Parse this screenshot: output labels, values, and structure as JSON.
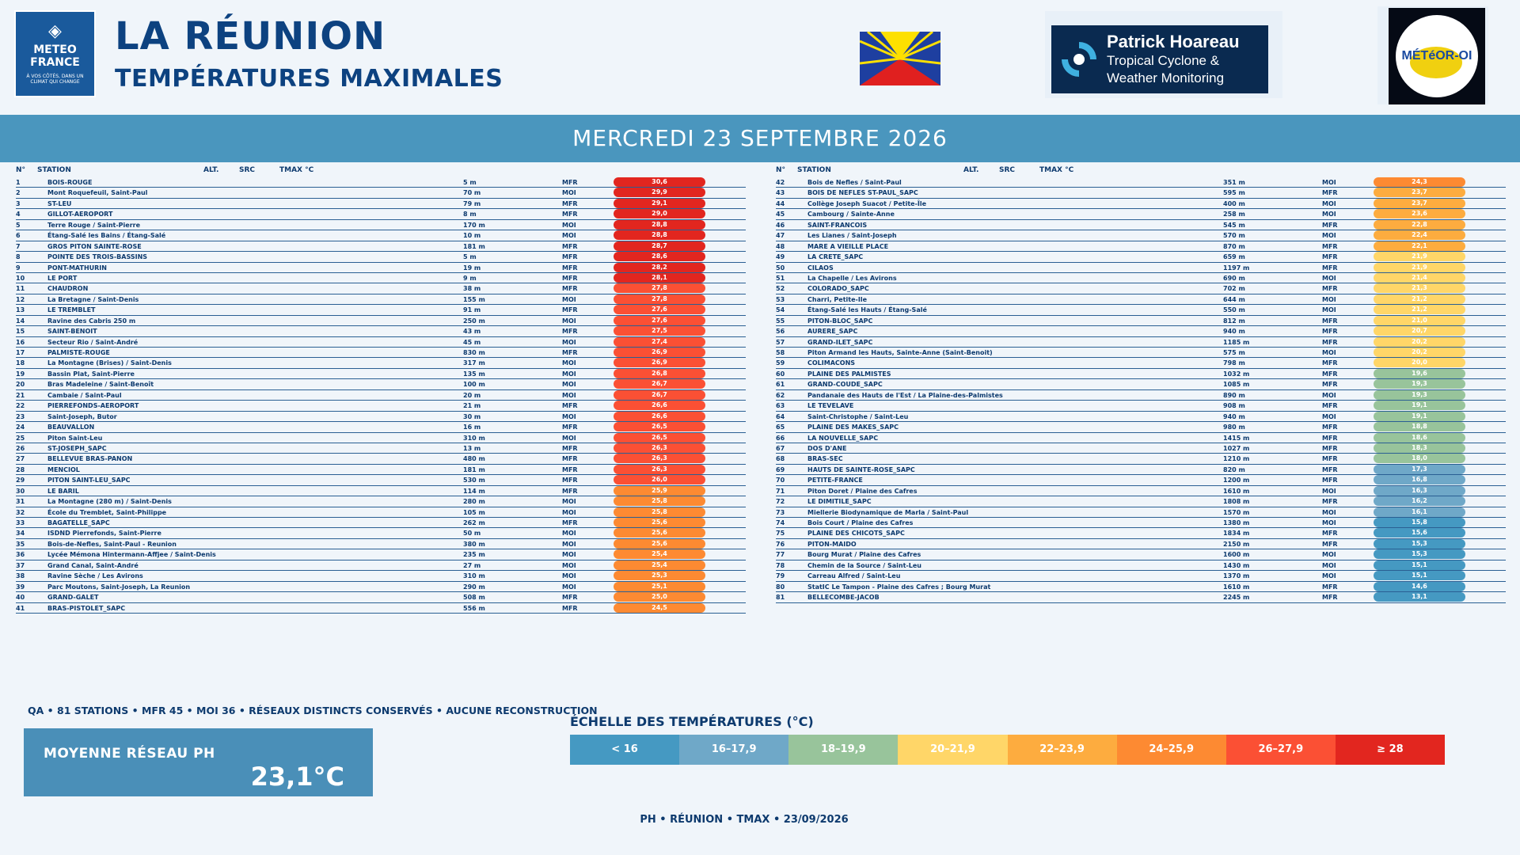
{
  "header": {
    "logo_mf": {
      "line1": "METEO",
      "line2": "FRANCE",
      "tagline": "À VOS CÔTÉS, DANS UN CLIMAT QUI CHANGE"
    },
    "title": "LA RÉUNION",
    "subtitle": "TEMPÉRATURES MAXIMALES",
    "logo_ph": {
      "name": "Patrick Hoareau",
      "line2": "Tropical Cyclone &",
      "line3": "Weather Monitoring"
    },
    "logo_moi": {
      "text": "MÉTéOR-OI"
    }
  },
  "banner": "MERCREDI 23 SEPTEMBRE 2026",
  "table_headers": {
    "n": "N°",
    "station": "STATION",
    "alt": "ALT.",
    "src": "SRC",
    "tmax": "TMAX °C"
  },
  "colors": {
    "lt16": "#4599c2",
    "c16_17": "#6fa8c8",
    "c18_19": "#98c49b",
    "c20_21": "#ffd668",
    "c22_23": "#fdac3f",
    "c24_25": "#fd8a32",
    "c26_27": "#fb5034",
    "ge28": "#e2261f"
  },
  "left_rows": [
    {
      "n": "1",
      "station": "BOIS-ROUGE",
      "alt": "5 m",
      "src": "MFR",
      "tmax": "30,6",
      "color": "#e2261f"
    },
    {
      "n": "2",
      "station": "Mont Roquefeuil, Saint-Paul",
      "alt": "70 m",
      "src": "MOI",
      "tmax": "29,9",
      "color": "#e2261f"
    },
    {
      "n": "3",
      "station": "ST-LEU",
      "alt": "79 m",
      "src": "MFR",
      "tmax": "29,1",
      "color": "#e2261f"
    },
    {
      "n": "4",
      "station": "GILLOT-AEROPORT",
      "alt": "8 m",
      "src": "MFR",
      "tmax": "29,0",
      "color": "#e2261f"
    },
    {
      "n": "5",
      "station": "Terre Rouge / Saint-Pierre",
      "alt": "170 m",
      "src": "MOI",
      "tmax": "28,8",
      "color": "#e2261f"
    },
    {
      "n": "6",
      "station": "Étang-Salé les Bains / Étang-Salé",
      "alt": "10 m",
      "src": "MOI",
      "tmax": "28,8",
      "color": "#e2261f"
    },
    {
      "n": "7",
      "station": "GROS PITON SAINTE-ROSE",
      "alt": "181 m",
      "src": "MFR",
      "tmax": "28,7",
      "color": "#e2261f"
    },
    {
      "n": "8",
      "station": "POINTE DES TROIS-BASSINS",
      "alt": "5 m",
      "src": "MFR",
      "tmax": "28,6",
      "color": "#e2261f"
    },
    {
      "n": "9",
      "station": "PONT-MATHURIN",
      "alt": "19 m",
      "src": "MFR",
      "tmax": "28,2",
      "color": "#e2261f"
    },
    {
      "n": "10",
      "station": "LE PORT",
      "alt": "9 m",
      "src": "MFR",
      "tmax": "28,1",
      "color": "#e2261f"
    },
    {
      "n": "11",
      "station": "CHAUDRON",
      "alt": "38 m",
      "src": "MFR",
      "tmax": "27,8",
      "color": "#fb5034"
    },
    {
      "n": "12",
      "station": "La Bretagne / Saint-Denis",
      "alt": "155 m",
      "src": "MOI",
      "tmax": "27,8",
      "color": "#fb5034"
    },
    {
      "n": "13",
      "station": "LE TREMBLET",
      "alt": "91 m",
      "src": "MFR",
      "tmax": "27,6",
      "color": "#fb5034"
    },
    {
      "n": "14",
      "station": "Ravine des Cabris 250 m",
      "alt": "250 m",
      "src": "MOI",
      "tmax": "27,6",
      "color": "#fb5034"
    },
    {
      "n": "15",
      "station": "SAINT-BENOIT",
      "alt": "43 m",
      "src": "MFR",
      "tmax": "27,5",
      "color": "#fb5034"
    },
    {
      "n": "16",
      "station": "Secteur Rio / Saint-André",
      "alt": "45 m",
      "src": "MOI",
      "tmax": "27,4",
      "color": "#fb5034"
    },
    {
      "n": "17",
      "station": "PALMISTE-ROUGE",
      "alt": "830 m",
      "src": "MFR",
      "tmax": "26,9",
      "color": "#fb5034"
    },
    {
      "n": "18",
      "station": "La Montagne (Brises) / Saint-Denis",
      "alt": "317 m",
      "src": "MOI",
      "tmax": "26,9",
      "color": "#fb5034"
    },
    {
      "n": "19",
      "station": "Bassin Plat, Saint-Pierre",
      "alt": "135 m",
      "src": "MOI",
      "tmax": "26,8",
      "color": "#fb5034"
    },
    {
      "n": "20",
      "station": "Bras Madeleine / Saint-Benoît",
      "alt": "100 m",
      "src": "MOI",
      "tmax": "26,7",
      "color": "#fb5034"
    },
    {
      "n": "21",
      "station": "Cambaie / Saint-Paul",
      "alt": "20 m",
      "src": "MOI",
      "tmax": "26,7",
      "color": "#fb5034"
    },
    {
      "n": "22",
      "station": "PIERREFONDS-AEROPORT",
      "alt": "21 m",
      "src": "MFR",
      "tmax": "26,6",
      "color": "#fb5034"
    },
    {
      "n": "23",
      "station": "Saint-Joseph, Butor",
      "alt": "30 m",
      "src": "MOI",
      "tmax": "26,6",
      "color": "#fb5034"
    },
    {
      "n": "24",
      "station": "BEAUVALLON",
      "alt": "16 m",
      "src": "MFR",
      "tmax": "26,5",
      "color": "#fb5034"
    },
    {
      "n": "25",
      "station": "Piton Saint-Leu",
      "alt": "310 m",
      "src": "MOI",
      "tmax": "26,5",
      "color": "#fb5034"
    },
    {
      "n": "26",
      "station": "ST-JOSEPH_SAPC",
      "alt": "13 m",
      "src": "MFR",
      "tmax": "26,3",
      "color": "#fb5034"
    },
    {
      "n": "27",
      "station": "BELLEVUE BRAS-PANON",
      "alt": "480 m",
      "src": "MFR",
      "tmax": "26,3",
      "color": "#fb5034"
    },
    {
      "n": "28",
      "station": "MENCIOL",
      "alt": "181 m",
      "src": "MFR",
      "tmax": "26,3",
      "color": "#fb5034"
    },
    {
      "n": "29",
      "station": "PITON SAINT-LEU_SAPC",
      "alt": "530 m",
      "src": "MFR",
      "tmax": "26,0",
      "color": "#fb5034"
    },
    {
      "n": "30",
      "station": "LE BARIL",
      "alt": "114 m",
      "src": "MFR",
      "tmax": "25,9",
      "color": "#fd8a32"
    },
    {
      "n": "31",
      "station": "La Montagne (280 m) / Saint-Denis",
      "alt": "280 m",
      "src": "MOI",
      "tmax": "25,8",
      "color": "#fd8a32"
    },
    {
      "n": "32",
      "station": "École du Tremblet, Saint-Philippe",
      "alt": "105 m",
      "src": "MOI",
      "tmax": "25,8",
      "color": "#fd8a32"
    },
    {
      "n": "33",
      "station": "BAGATELLE_SAPC",
      "alt": "262 m",
      "src": "MFR",
      "tmax": "25,6",
      "color": "#fd8a32"
    },
    {
      "n": "34",
      "station": "ISDND Pierrefonds, Saint-Pierre",
      "alt": "50 m",
      "src": "MOI",
      "tmax": "25,6",
      "color": "#fd8a32"
    },
    {
      "n": "35",
      "station": "Bois-de-Nefles, Saint-Paul - Reunion",
      "alt": "380 m",
      "src": "MOI",
      "tmax": "25,6",
      "color": "#fd8a32"
    },
    {
      "n": "36",
      "station": "Lycée Mémona Hintermann-Affjee / Saint-Denis",
      "alt": "235 m",
      "src": "MOI",
      "tmax": "25,4",
      "color": "#fd8a32"
    },
    {
      "n": "37",
      "station": "Grand Canal, Saint-André",
      "alt": "27 m",
      "src": "MOI",
      "tmax": "25,4",
      "color": "#fd8a32"
    },
    {
      "n": "38",
      "station": "Ravine Sèche / Les Avirons",
      "alt": "310 m",
      "src": "MOI",
      "tmax": "25,3",
      "color": "#fd8a32"
    },
    {
      "n": "39",
      "station": "Parc  Moutons, Saint-Joseph, La Reunion",
      "alt": "290 m",
      "src": "MOI",
      "tmax": "25,1",
      "color": "#fd8a32"
    },
    {
      "n": "40",
      "station": "GRAND-GALET",
      "alt": "508 m",
      "src": "MFR",
      "tmax": "25,0",
      "color": "#fd8a32"
    },
    {
      "n": "41",
      "station": "BRAS-PISTOLET_SAPC",
      "alt": "556 m",
      "src": "MFR",
      "tmax": "24,5",
      "color": "#fd8a32"
    }
  ],
  "right_rows": [
    {
      "n": "42",
      "station": "Bois de Nefles / Saint-Paul",
      "alt": "351 m",
      "src": "MOI",
      "tmax": "24,3",
      "color": "#fd8a32"
    },
    {
      "n": "43",
      "station": "BOIS DE NEFLES ST-PAUL_SAPC",
      "alt": "595 m",
      "src": "MFR",
      "tmax": "23,7",
      "color": "#fdac3f"
    },
    {
      "n": "44",
      "station": "Collège Joseph Suacot / Petite-Île",
      "alt": "400 m",
      "src": "MOI",
      "tmax": "23,7",
      "color": "#fdac3f"
    },
    {
      "n": "45",
      "station": "Cambourg / Sainte-Anne",
      "alt": "258 m",
      "src": "MOI",
      "tmax": "23,6",
      "color": "#fdac3f"
    },
    {
      "n": "46",
      "station": "SAINT-FRANCOIS",
      "alt": "545 m",
      "src": "MFR",
      "tmax": "22,8",
      "color": "#fdac3f"
    },
    {
      "n": "47",
      "station": "Les Lianes / Saint-Joseph",
      "alt": "570 m",
      "src": "MOI",
      "tmax": "22,4",
      "color": "#fdac3f"
    },
    {
      "n": "48",
      "station": "MARE A VIEILLE PLACE",
      "alt": "870 m",
      "src": "MFR",
      "tmax": "22,1",
      "color": "#fdac3f"
    },
    {
      "n": "49",
      "station": "LA CRETE_SAPC",
      "alt": "659 m",
      "src": "MFR",
      "tmax": "21,9",
      "color": "#ffd668"
    },
    {
      "n": "50",
      "station": "CILAOS",
      "alt": "1197 m",
      "src": "MFR",
      "tmax": "21,9",
      "color": "#ffd668"
    },
    {
      "n": "51",
      "station": "La Chapelle / Les Avirons",
      "alt": "690 m",
      "src": "MOI",
      "tmax": "21,4",
      "color": "#ffd668"
    },
    {
      "n": "52",
      "station": "COLORADO_SAPC",
      "alt": "702 m",
      "src": "MFR",
      "tmax": "21,3",
      "color": "#ffd668"
    },
    {
      "n": "53",
      "station": "Charri, Petite-Ile",
      "alt": "644 m",
      "src": "MOI",
      "tmax": "21,2",
      "color": "#ffd668"
    },
    {
      "n": "54",
      "station": "Étang-Salé les Hauts / Étang-Salé",
      "alt": "550 m",
      "src": "MOI",
      "tmax": "21,2",
      "color": "#ffd668"
    },
    {
      "n": "55",
      "station": "PITON-BLOC_SAPC",
      "alt": "812 m",
      "src": "MFR",
      "tmax": "21,0",
      "color": "#ffd668"
    },
    {
      "n": "56",
      "station": "AURERE_SAPC",
      "alt": "940 m",
      "src": "MFR",
      "tmax": "20,7",
      "color": "#ffd668"
    },
    {
      "n": "57",
      "station": "GRAND-ILET_SAPC",
      "alt": "1185 m",
      "src": "MFR",
      "tmax": "20,2",
      "color": "#ffd668"
    },
    {
      "n": "58",
      "station": "Piton Armand les Hauts, Sainte-Anne (Saint-Benoit)",
      "alt": "575 m",
      "src": "MOI",
      "tmax": "20,2",
      "color": "#ffd668"
    },
    {
      "n": "59",
      "station": "COLIMACONS",
      "alt": "798 m",
      "src": "MFR",
      "tmax": "20,0",
      "color": "#ffd668"
    },
    {
      "n": "60",
      "station": "PLAINE DES PALMISTES",
      "alt": "1032 m",
      "src": "MFR",
      "tmax": "19,6",
      "color": "#98c49b"
    },
    {
      "n": "61",
      "station": "GRAND-COUDE_SAPC",
      "alt": "1085 m",
      "src": "MFR",
      "tmax": "19,3",
      "color": "#98c49b"
    },
    {
      "n": "62",
      "station": "Pandanaie des Hauts de l'Est / La Plaine-des-Palmistes",
      "alt": "890 m",
      "src": "MOI",
      "tmax": "19,3",
      "color": "#98c49b"
    },
    {
      "n": "63",
      "station": "LE TEVELAVE",
      "alt": "908 m",
      "src": "MFR",
      "tmax": "19,1",
      "color": "#98c49b"
    },
    {
      "n": "64",
      "station": "Saint-Christophe / Saint-Leu",
      "alt": "940 m",
      "src": "MOI",
      "tmax": "19,1",
      "color": "#98c49b"
    },
    {
      "n": "65",
      "station": "PLAINE DES MAKES_SAPC",
      "alt": "980 m",
      "src": "MFR",
      "tmax": "18,8",
      "color": "#98c49b"
    },
    {
      "n": "66",
      "station": "LA NOUVELLE_SAPC",
      "alt": "1415 m",
      "src": "MFR",
      "tmax": "18,6",
      "color": "#98c49b"
    },
    {
      "n": "67",
      "station": "DOS D'ANE",
      "alt": "1027 m",
      "src": "MFR",
      "tmax": "18,3",
      "color": "#98c49b"
    },
    {
      "n": "68",
      "station": "BRAS-SEC",
      "alt": "1210 m",
      "src": "MFR",
      "tmax": "18,0",
      "color": "#98c49b"
    },
    {
      "n": "69",
      "station": "HAUTS DE SAINTE-ROSE_SAPC",
      "alt": "820 m",
      "src": "MFR",
      "tmax": "17,3",
      "color": "#6fa8c8"
    },
    {
      "n": "70",
      "station": "PETITE-FRANCE",
      "alt": "1200 m",
      "src": "MFR",
      "tmax": "16,8",
      "color": "#6fa8c8"
    },
    {
      "n": "71",
      "station": "Piton Doret / Plaine des Cafres",
      "alt": "1610 m",
      "src": "MOI",
      "tmax": "16,3",
      "color": "#6fa8c8"
    },
    {
      "n": "72",
      "station": "LE DIMITILE_SAPC",
      "alt": "1808 m",
      "src": "MFR",
      "tmax": "16,2",
      "color": "#6fa8c8"
    },
    {
      "n": "73",
      "station": "Miellerie Biodynamique de Marla / Saint-Paul",
      "alt": "1570 m",
      "src": "MOI",
      "tmax": "16,1",
      "color": "#6fa8c8"
    },
    {
      "n": "74",
      "station": "Bois Court / Plaine des Cafres",
      "alt": "1380 m",
      "src": "MOI",
      "tmax": "15,8",
      "color": "#4599c2"
    },
    {
      "n": "75",
      "station": "PLAINE DES CHICOTS_SAPC",
      "alt": "1834 m",
      "src": "MFR",
      "tmax": "15,6",
      "color": "#4599c2"
    },
    {
      "n": "76",
      "station": "PITON-MAIDO",
      "alt": "2150 m",
      "src": "MFR",
      "tmax": "15,3",
      "color": "#4599c2"
    },
    {
      "n": "77",
      "station": "Bourg Murat / Plaine des Cafres",
      "alt": "1600 m",
      "src": "MOI",
      "tmax": "15,3",
      "color": "#4599c2"
    },
    {
      "n": "78",
      "station": "Chemin de la Source / Saint-Leu",
      "alt": "1430 m",
      "src": "MOI",
      "tmax": "15,1",
      "color": "#4599c2"
    },
    {
      "n": "79",
      "station": "Carreau Alfred / Saint-Leu",
      "alt": "1370 m",
      "src": "MOI",
      "tmax": "15,1",
      "color": "#4599c2"
    },
    {
      "n": "80",
      "station": "StatIC Le Tampon - Plaine des Cafres ; Bourg Murat",
      "alt": "1610 m",
      "src": "MFR",
      "tmax": "14,6",
      "color": "#4599c2"
    },
    {
      "n": "81",
      "station": "BELLECOMBE-JACOB",
      "alt": "2245 m",
      "src": "MFR",
      "tmax": "13,1",
      "color": "#4599c2"
    }
  ],
  "qa_text": "QA • 81 STATIONS • MFR 45 • MOI 36 • RÉSEAUX DISTINCTS CONSERVÉS • AUCUNE RECONSTRUCTION",
  "average": {
    "label": "MOYENNE RÉSEAU PH",
    "value": "23,1°C"
  },
  "scale": {
    "title": "ÉCHELLE DES TEMPÉRATURES (°C)",
    "items": [
      {
        "label": "< 16",
        "color": "#4599c2"
      },
      {
        "label": "16–17,9",
        "color": "#6fa8c8"
      },
      {
        "label": "18–19,9",
        "color": "#98c49b"
      },
      {
        "label": "20–21,9",
        "color": "#ffd668"
      },
      {
        "label": "22–23,9",
        "color": "#fdac3f"
      },
      {
        "label": "24–25,9",
        "color": "#fd8a32"
      },
      {
        "label": "26–27,9",
        "color": "#fb5034"
      },
      {
        "label": "≥ 28",
        "color": "#e2261f"
      }
    ]
  },
  "footer": "PH • RÉUNION • TMAX • 23/09/2026"
}
